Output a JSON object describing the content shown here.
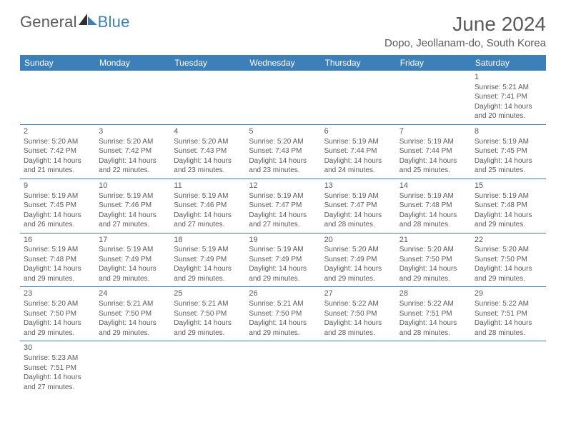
{
  "logo": {
    "textA": "General",
    "textB": "Blue"
  },
  "header": {
    "month_year": "June 2024",
    "location": "Dopo, Jeollanam-do, South Korea"
  },
  "colors": {
    "header_bg": "#3d7fb8",
    "header_text": "#ffffff",
    "body_text": "#5a5a5a",
    "row_border": "#3d7fb8",
    "page_bg": "#ffffff"
  },
  "typography": {
    "title_fontsize_pt": 21,
    "location_fontsize_pt": 11,
    "dayheader_fontsize_pt": 9,
    "cell_fontsize_pt": 7.5
  },
  "day_headers": [
    "Sunday",
    "Monday",
    "Tuesday",
    "Wednesday",
    "Thursday",
    "Friday",
    "Saturday"
  ],
  "weeks": [
    [
      null,
      null,
      null,
      null,
      null,
      null,
      {
        "n": "1",
        "sr": "Sunrise: 5:21 AM",
        "ss": "Sunset: 7:41 PM",
        "d1": "Daylight: 14 hours",
        "d2": "and 20 minutes."
      }
    ],
    [
      {
        "n": "2",
        "sr": "Sunrise: 5:20 AM",
        "ss": "Sunset: 7:42 PM",
        "d1": "Daylight: 14 hours",
        "d2": "and 21 minutes."
      },
      {
        "n": "3",
        "sr": "Sunrise: 5:20 AM",
        "ss": "Sunset: 7:42 PM",
        "d1": "Daylight: 14 hours",
        "d2": "and 22 minutes."
      },
      {
        "n": "4",
        "sr": "Sunrise: 5:20 AM",
        "ss": "Sunset: 7:43 PM",
        "d1": "Daylight: 14 hours",
        "d2": "and 23 minutes."
      },
      {
        "n": "5",
        "sr": "Sunrise: 5:20 AM",
        "ss": "Sunset: 7:43 PM",
        "d1": "Daylight: 14 hours",
        "d2": "and 23 minutes."
      },
      {
        "n": "6",
        "sr": "Sunrise: 5:19 AM",
        "ss": "Sunset: 7:44 PM",
        "d1": "Daylight: 14 hours",
        "d2": "and 24 minutes."
      },
      {
        "n": "7",
        "sr": "Sunrise: 5:19 AM",
        "ss": "Sunset: 7:44 PM",
        "d1": "Daylight: 14 hours",
        "d2": "and 25 minutes."
      },
      {
        "n": "8",
        "sr": "Sunrise: 5:19 AM",
        "ss": "Sunset: 7:45 PM",
        "d1": "Daylight: 14 hours",
        "d2": "and 25 minutes."
      }
    ],
    [
      {
        "n": "9",
        "sr": "Sunrise: 5:19 AM",
        "ss": "Sunset: 7:45 PM",
        "d1": "Daylight: 14 hours",
        "d2": "and 26 minutes."
      },
      {
        "n": "10",
        "sr": "Sunrise: 5:19 AM",
        "ss": "Sunset: 7:46 PM",
        "d1": "Daylight: 14 hours",
        "d2": "and 27 minutes."
      },
      {
        "n": "11",
        "sr": "Sunrise: 5:19 AM",
        "ss": "Sunset: 7:46 PM",
        "d1": "Daylight: 14 hours",
        "d2": "and 27 minutes."
      },
      {
        "n": "12",
        "sr": "Sunrise: 5:19 AM",
        "ss": "Sunset: 7:47 PM",
        "d1": "Daylight: 14 hours",
        "d2": "and 27 minutes."
      },
      {
        "n": "13",
        "sr": "Sunrise: 5:19 AM",
        "ss": "Sunset: 7:47 PM",
        "d1": "Daylight: 14 hours",
        "d2": "and 28 minutes."
      },
      {
        "n": "14",
        "sr": "Sunrise: 5:19 AM",
        "ss": "Sunset: 7:48 PM",
        "d1": "Daylight: 14 hours",
        "d2": "and 28 minutes."
      },
      {
        "n": "15",
        "sr": "Sunrise: 5:19 AM",
        "ss": "Sunset: 7:48 PM",
        "d1": "Daylight: 14 hours",
        "d2": "and 29 minutes."
      }
    ],
    [
      {
        "n": "16",
        "sr": "Sunrise: 5:19 AM",
        "ss": "Sunset: 7:48 PM",
        "d1": "Daylight: 14 hours",
        "d2": "and 29 minutes."
      },
      {
        "n": "17",
        "sr": "Sunrise: 5:19 AM",
        "ss": "Sunset: 7:49 PM",
        "d1": "Daylight: 14 hours",
        "d2": "and 29 minutes."
      },
      {
        "n": "18",
        "sr": "Sunrise: 5:19 AM",
        "ss": "Sunset: 7:49 PM",
        "d1": "Daylight: 14 hours",
        "d2": "and 29 minutes."
      },
      {
        "n": "19",
        "sr": "Sunrise: 5:19 AM",
        "ss": "Sunset: 7:49 PM",
        "d1": "Daylight: 14 hours",
        "d2": "and 29 minutes."
      },
      {
        "n": "20",
        "sr": "Sunrise: 5:20 AM",
        "ss": "Sunset: 7:49 PM",
        "d1": "Daylight: 14 hours",
        "d2": "and 29 minutes."
      },
      {
        "n": "21",
        "sr": "Sunrise: 5:20 AM",
        "ss": "Sunset: 7:50 PM",
        "d1": "Daylight: 14 hours",
        "d2": "and 29 minutes."
      },
      {
        "n": "22",
        "sr": "Sunrise: 5:20 AM",
        "ss": "Sunset: 7:50 PM",
        "d1": "Daylight: 14 hours",
        "d2": "and 29 minutes."
      }
    ],
    [
      {
        "n": "23",
        "sr": "Sunrise: 5:20 AM",
        "ss": "Sunset: 7:50 PM",
        "d1": "Daylight: 14 hours",
        "d2": "and 29 minutes."
      },
      {
        "n": "24",
        "sr": "Sunrise: 5:21 AM",
        "ss": "Sunset: 7:50 PM",
        "d1": "Daylight: 14 hours",
        "d2": "and 29 minutes."
      },
      {
        "n": "25",
        "sr": "Sunrise: 5:21 AM",
        "ss": "Sunset: 7:50 PM",
        "d1": "Daylight: 14 hours",
        "d2": "and 29 minutes."
      },
      {
        "n": "26",
        "sr": "Sunrise: 5:21 AM",
        "ss": "Sunset: 7:50 PM",
        "d1": "Daylight: 14 hours",
        "d2": "and 29 minutes."
      },
      {
        "n": "27",
        "sr": "Sunrise: 5:22 AM",
        "ss": "Sunset: 7:50 PM",
        "d1": "Daylight: 14 hours",
        "d2": "and 28 minutes."
      },
      {
        "n": "28",
        "sr": "Sunrise: 5:22 AM",
        "ss": "Sunset: 7:51 PM",
        "d1": "Daylight: 14 hours",
        "d2": "and 28 minutes."
      },
      {
        "n": "29",
        "sr": "Sunrise: 5:22 AM",
        "ss": "Sunset: 7:51 PM",
        "d1": "Daylight: 14 hours",
        "d2": "and 28 minutes."
      }
    ],
    [
      {
        "n": "30",
        "sr": "Sunrise: 5:23 AM",
        "ss": "Sunset: 7:51 PM",
        "d1": "Daylight: 14 hours",
        "d2": "and 27 minutes."
      },
      null,
      null,
      null,
      null,
      null,
      null
    ]
  ]
}
